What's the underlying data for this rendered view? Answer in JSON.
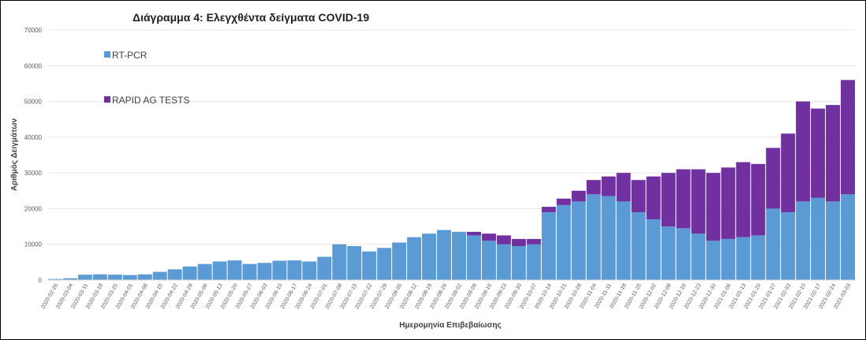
{
  "chart_data": {
    "type": "bar",
    "stacked": true,
    "title": "Διάγραμμα 4: Ελεγχθέντα δείγματα COVID-19",
    "xlabel": "Ημερομηνία Επιβεβαίωσης",
    "ylabel": "Αριθμός Δειγμάτων",
    "ylim": [
      0,
      70000
    ],
    "yticks": [
      "0",
      "10000",
      "20000",
      "30000",
      "40000",
      "50000",
      "60000",
      "70000"
    ],
    "ytick_values": [
      0,
      10000,
      20000,
      30000,
      40000,
      50000,
      60000,
      70000
    ],
    "grid": true,
    "legend_placement": "top-left",
    "x_tick_labels": [
      "2020-02-26",
      "2020-03-04",
      "2020-03-11",
      "2020-03-18",
      "2020-03-25",
      "2020-04-01",
      "2020-04-08",
      "2020-04-15",
      "2020-04-22",
      "2020-04-29",
      "2020-05-06",
      "2020-05-13",
      "2020-05-20",
      "2020-05-27",
      "2020-06-03",
      "2020-06-10",
      "2020-06-17",
      "2020-06-24",
      "2020-07-01",
      "2020-07-08",
      "2020-07-15",
      "2020-07-22",
      "2020-07-29",
      "2020-08-05",
      "2020-08-12",
      "2020-08-19",
      "2020-08-26",
      "2020-09-02",
      "2020-09-09",
      "2020-09-16",
      "2020-09-23",
      "2020-09-30",
      "2020-10-07",
      "2020-10-14",
      "2020-10-21",
      "2020-10-28",
      "2020-11-04",
      "2020-11-11",
      "2020-11-18",
      "2020-11-25",
      "2020-12-02",
      "2020-12-09",
      "2020-12-16",
      "2020-12-23",
      "2020-12-30",
      "2021-01-06",
      "2021-01-13",
      "2021-01-20",
      "2021-01-27",
      "2021-02-03",
      "2021-02-10",
      "2021-02-17",
      "2021-02-24",
      "2021-03-03"
    ],
    "series": [
      {
        "name": "RT-PCR",
        "color": "#5b9bd5",
        "weekly_values": [
          300,
          500,
          1500,
          1600,
          1500,
          1400,
          1600,
          2300,
          3000,
          3800,
          4500,
          5200,
          5500,
          4500,
          4800,
          5400,
          5500,
          5200,
          6500,
          10000,
          9500,
          8000,
          9000,
          10500,
          12000,
          13000,
          14000,
          13500,
          12500,
          11000,
          10000,
          9500,
          10000,
          19000,
          21000,
          22000,
          24000,
          23500,
          22000,
          19000,
          17000,
          15000,
          14500,
          13000,
          11000,
          11500,
          12000,
          12500,
          20000,
          19000,
          22000,
          23000,
          22000,
          24000
        ]
      },
      {
        "name": "RAPID AG TESTS",
        "color": "#7030a0",
        "weekly_values": [
          0,
          0,
          0,
          0,
          0,
          0,
          0,
          0,
          0,
          0,
          0,
          0,
          0,
          0,
          0,
          0,
          0,
          0,
          0,
          0,
          0,
          0,
          0,
          0,
          0,
          0,
          0,
          0,
          1000,
          2000,
          2500,
          2000,
          1500,
          1500,
          1800,
          3000,
          4000,
          5500,
          8000,
          9000,
          12000,
          15000,
          16500,
          18000,
          19000,
          20000,
          21000,
          20000,
          17000,
          22000,
          28000,
          25000,
          27000,
          32000
        ]
      }
    ]
  }
}
